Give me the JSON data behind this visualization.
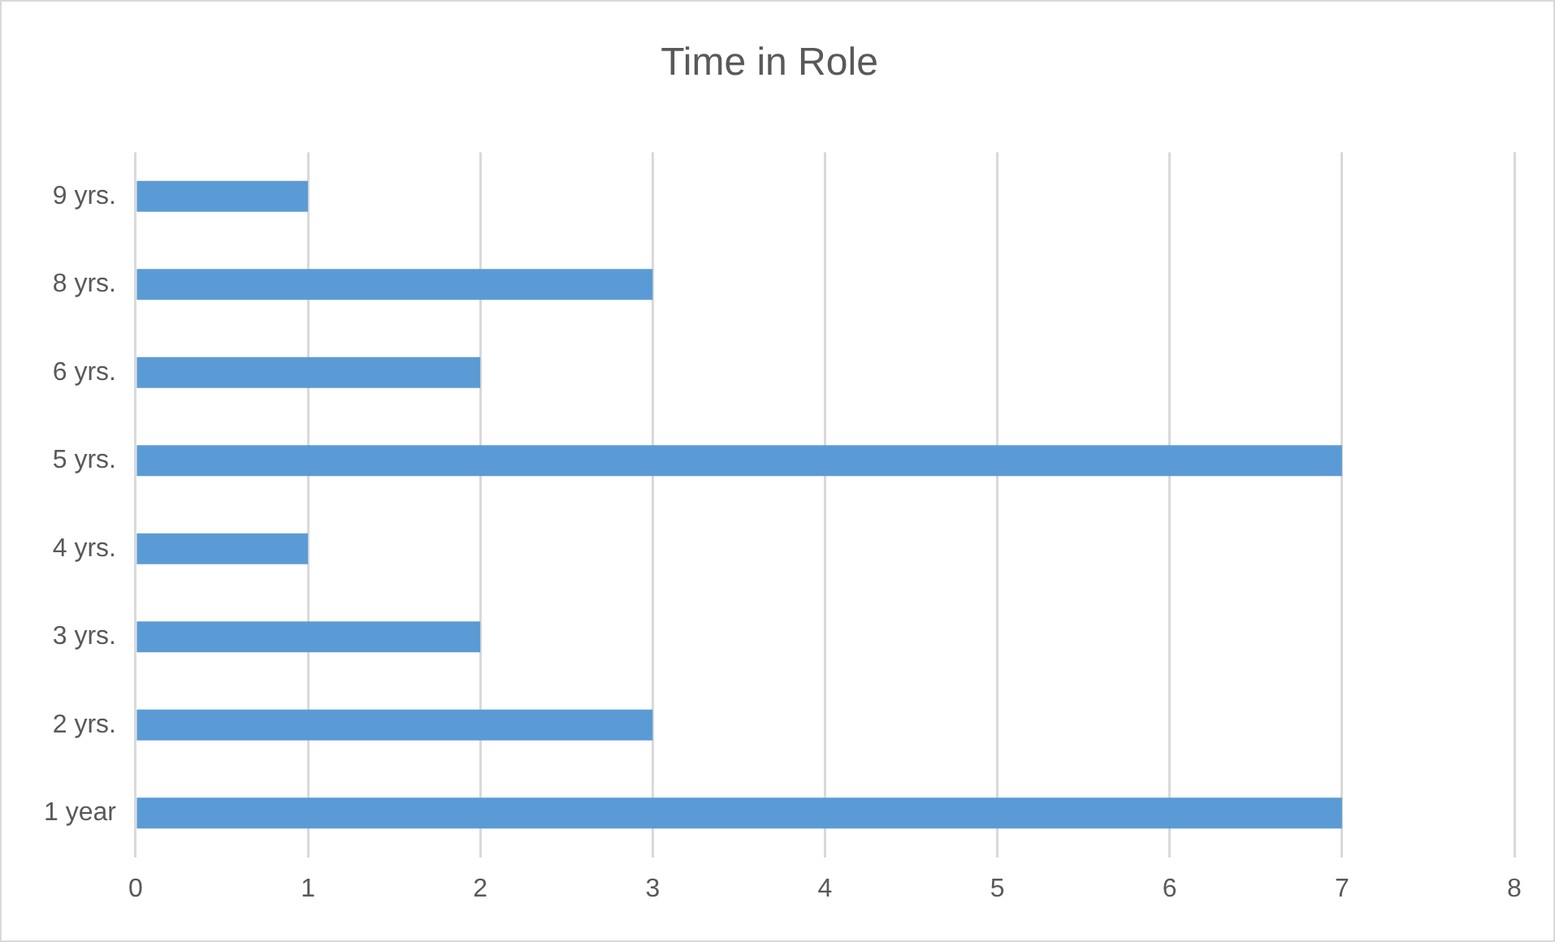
{
  "chart_data": {
    "type": "bar",
    "orientation": "horizontal",
    "title": "Time in Role",
    "categories": [
      "9 yrs.",
      "8 yrs.",
      "6 yrs.",
      "5 yrs.",
      "4 yrs.",
      "3 yrs.",
      "2 yrs.",
      "1 year"
    ],
    "values": [
      1,
      3,
      2,
      7,
      1,
      2,
      3,
      7
    ],
    "color": "#5b9bd5",
    "xlim": [
      0,
      8
    ],
    "xticks": [
      0,
      1,
      2,
      3,
      4,
      5,
      6,
      7,
      8
    ],
    "grid": "x"
  }
}
